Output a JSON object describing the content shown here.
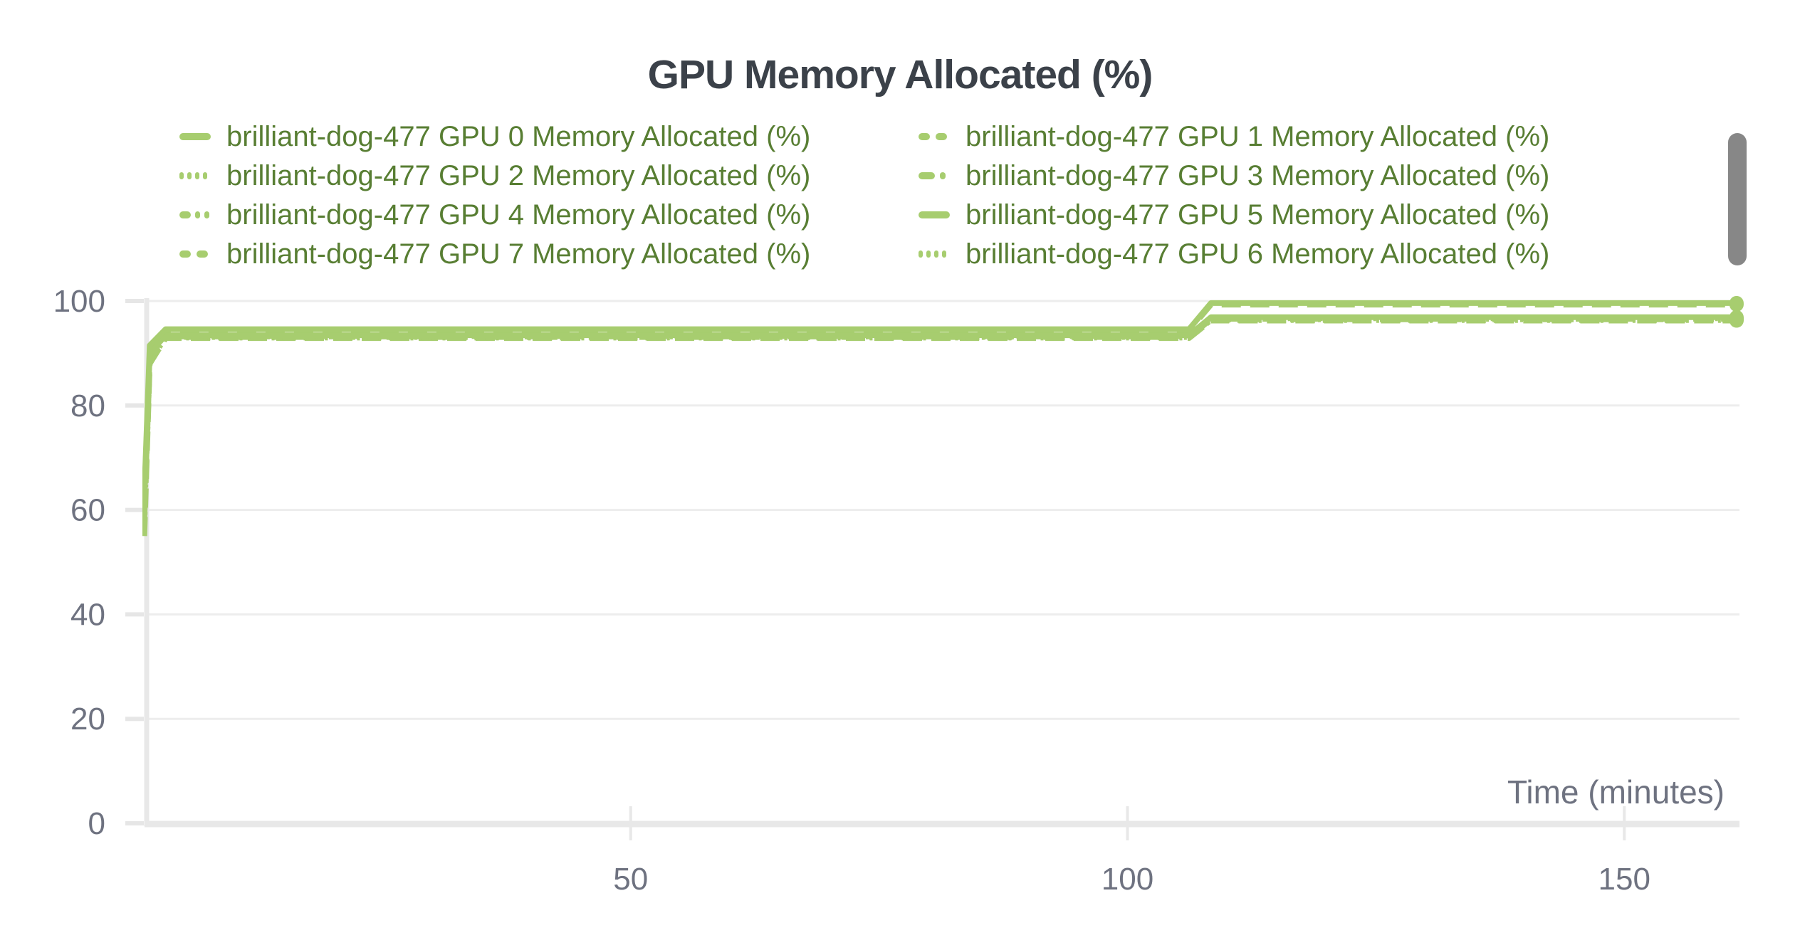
{
  "colors": {
    "line_green": "#a7cd6f",
    "legend_text": "#587e33",
    "title_text": "#3b4149",
    "axis_text": "#6e7280",
    "gridline": "#ededed",
    "axis_line": "#e8e8e8",
    "tick_line": "#e6e6e6",
    "scrollbar": "#878787",
    "background": "#ffffff"
  },
  "legend": {
    "order": [
      0,
      1,
      2,
      3,
      4,
      5,
      7,
      6
    ]
  },
  "scrollbar": {
    "visible": true
  },
  "chart_data": {
    "type": "line",
    "title": "GPU Memory Allocated (%)",
    "xlabel": "Time (minutes)",
    "ylabel": "",
    "x_ticks": [
      50,
      100,
      150
    ],
    "y_ticks": [
      0,
      20,
      40,
      60,
      80,
      100
    ],
    "x_range": [
      1,
      161.5
    ],
    "y_range": [
      0,
      100
    ],
    "grid": "horizontal",
    "legend_position": "top",
    "series": [
      {
        "name": "brilliant-dog-477 GPU 0 Memory Allocated (%)",
        "gpu": 0,
        "style": "solid",
        "x": [
          1.05,
          1.6,
          3.2,
          106.2,
          108.4,
          161.3
        ],
        "y": [
          63,
          91.5,
          94.6,
          94.6,
          99.6,
          99.6
        ]
      },
      {
        "name": "brilliant-dog-477 GPU 1 Memory Allocated (%)",
        "gpu": 1,
        "style": "dashed",
        "x": [
          1.05,
          1.6,
          3.2,
          106.2,
          108.4,
          161.3
        ],
        "y": [
          60,
          90.5,
          94.3,
          94.3,
          99.3,
          99.3
        ]
      },
      {
        "name": "brilliant-dog-477 GPU 2 Memory Allocated (%)",
        "gpu": 2,
        "style": "dotted",
        "x": [
          1.05,
          1.6,
          3.2,
          106.2,
          108.4,
          161.3
        ],
        "y": [
          61,
          89.5,
          93.3,
          93.3,
          96.7,
          96.7
        ]
      },
      {
        "name": "brilliant-dog-477 GPU 3 Memory Allocated (%)",
        "gpu": 3,
        "style": "dashdot",
        "x": [
          1.05,
          1.6,
          3.2,
          106.2,
          108.4,
          161.3
        ],
        "y": [
          58,
          89,
          93.2,
          93.2,
          96.6,
          96.6
        ]
      },
      {
        "name": "brilliant-dog-477 GPU 4 Memory Allocated (%)",
        "gpu": 4,
        "style": "dashdotdot",
        "x": [
          1.05,
          1.6,
          3.2,
          106.2,
          108.4,
          161.3
        ],
        "y": [
          59,
          89,
          93.1,
          93.1,
          96.5,
          96.5
        ]
      },
      {
        "name": "brilliant-dog-477 GPU 5 Memory Allocated (%)",
        "gpu": 5,
        "style": "solid",
        "x": [
          1.05,
          1.6,
          3.2,
          106.2,
          108.4,
          161.3
        ],
        "y": [
          62,
          90,
          93.45,
          93.45,
          96.9,
          96.9
        ]
      },
      {
        "name": "brilliant-dog-477 GPU 6 Memory Allocated (%)",
        "gpu": 6,
        "style": "dotted",
        "x": [
          1.05,
          1.6,
          3.2,
          106.2,
          108.4,
          161.3
        ],
        "y": [
          57,
          88.5,
          93.0,
          93.0,
          96.35,
          96.35
        ]
      },
      {
        "name": "brilliant-dog-477 GPU 7 Memory Allocated (%)",
        "gpu": 7,
        "style": "dashed",
        "x": [
          1.05,
          1.6,
          3.2,
          106.2,
          108.4,
          161.3
        ],
        "y": [
          55,
          88,
          92.9,
          92.9,
          96.25,
          96.25
        ]
      }
    ]
  }
}
